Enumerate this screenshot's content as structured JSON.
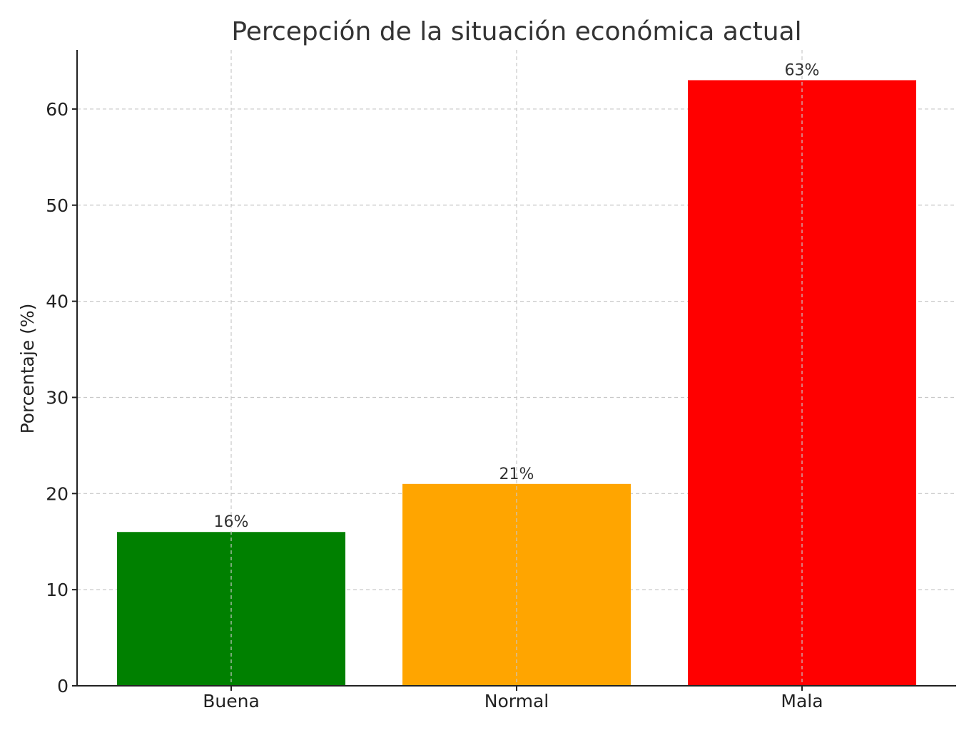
{
  "chart_data": {
    "type": "bar",
    "title": "Percepción de la situación económica actual",
    "xlabel": "",
    "ylabel": "Porcentaje (%)",
    "categories": [
      "Buena",
      "Normal",
      "Mala"
    ],
    "values": [
      16,
      21,
      63
    ],
    "data_labels": [
      "16%",
      "21%",
      "63%"
    ],
    "colors": [
      "#008000",
      "#ffa500",
      "#ff0000"
    ],
    "ylim": [
      0,
      66.15
    ],
    "yticks": [
      0,
      10,
      20,
      30,
      40,
      50,
      60
    ],
    "grid": true
  }
}
